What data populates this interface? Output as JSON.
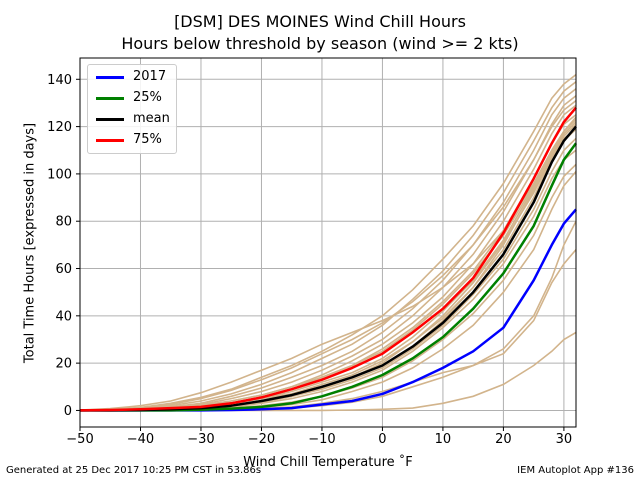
{
  "title": "[DSM] DES MOINES Wind Chill Hours",
  "subtitle": "Hours below threshold by season (wind >= 2 kts)",
  "footer_left": "Generated at 25 Dec 2017 10:25 PM CST in 53.86s",
  "footer_right": "IEM Autoplot App #136",
  "chart_data": {
    "type": "line",
    "xlabel": "Wind Chill Temperature ˚F",
    "ylabel": "Total Time Hours [expressed in days]",
    "xlim": [
      -50,
      32
    ],
    "ylim": [
      -7,
      149
    ],
    "xticks": [
      -50,
      -40,
      -30,
      -20,
      -10,
      0,
      10,
      20,
      30
    ],
    "yticks": [
      0,
      20,
      40,
      60,
      80,
      100,
      120,
      140
    ],
    "grid": true,
    "legend_position": "top-left",
    "background_color": "#d2b48c",
    "x": [
      -50,
      -45,
      -40,
      -35,
      -30,
      -25,
      -20,
      -15,
      -10,
      -5,
      0,
      5,
      10,
      15,
      20,
      25,
      28,
      30,
      32
    ],
    "series": [
      {
        "name": "2017",
        "color": "#0000ff",
        "values": [
          0,
          0,
          0,
          0,
          0,
          0.2,
          0.5,
          1,
          2.5,
          4,
          7,
          12,
          18,
          25,
          35,
          55,
          70,
          79,
          85
        ]
      },
      {
        "name": "25%",
        "color": "#008000",
        "values": [
          0,
          0,
          0,
          0,
          0.3,
          0.8,
          1.5,
          3,
          6,
          10,
          15,
          22,
          31,
          43,
          58,
          78,
          95,
          106,
          113
        ]
      },
      {
        "name": "mean",
        "color": "#000000",
        "values": [
          0,
          0,
          0.2,
          0.5,
          1,
          2,
          4,
          6.5,
          10,
          14,
          19,
          27,
          37,
          50,
          66,
          88,
          105,
          114,
          120
        ]
      },
      {
        "name": "75%",
        "color": "#ff0000",
        "values": [
          0,
          0.2,
          0.5,
          1,
          1.5,
          3,
          5.5,
          9,
          13,
          18,
          24,
          33,
          43,
          56,
          75,
          98,
          113,
          122,
          128
        ]
      }
    ],
    "seasons": [
      [
        0,
        0,
        0,
        0,
        0,
        0,
        0,
        0,
        0,
        0.2,
        0.5,
        1,
        3,
        6,
        11,
        19,
        25,
        30,
        33
      ],
      [
        0,
        0,
        0,
        0,
        0.1,
        0.3,
        0.8,
        1.5,
        3,
        5,
        8,
        12,
        16,
        19,
        24,
        38,
        54,
        62,
        68
      ],
      [
        0,
        0,
        0,
        0,
        0.1,
        0.3,
        0.5,
        1,
        2,
        3.5,
        6,
        10,
        14,
        19,
        26,
        40,
        56,
        70,
        80
      ],
      [
        0,
        0,
        0,
        0.1,
        0.3,
        0.6,
        1.2,
        2.5,
        4.5,
        8,
        12,
        18,
        26,
        36,
        50,
        68,
        85,
        95,
        101
      ],
      [
        0,
        0,
        0,
        0.2,
        0.5,
        1,
        2,
        3.5,
        6,
        9.5,
        14,
        21,
        30,
        41,
        55,
        74,
        90,
        99,
        104
      ],
      [
        0,
        0,
        0.1,
        0.3,
        0.8,
        1.5,
        3,
        5,
        8,
        12,
        17,
        25,
        35,
        47,
        62,
        82,
        98,
        106,
        110
      ],
      [
        0,
        0,
        0.2,
        0.5,
        1,
        2,
        3.5,
        6,
        9,
        13,
        18,
        26,
        36,
        49,
        64,
        85,
        101,
        110,
        115
      ],
      [
        0,
        0.1,
        0.3,
        0.6,
        1.2,
        2.3,
        4,
        7,
        11,
        15,
        21,
        29,
        39,
        52,
        68,
        90,
        106,
        114,
        119
      ],
      [
        0,
        0.1,
        0.3,
        0.7,
        1.5,
        2.8,
        5,
        8,
        12,
        16,
        22,
        31,
        42,
        55,
        72,
        94,
        109,
        117,
        122
      ],
      [
        0,
        0.1,
        0.4,
        0.9,
        1.8,
        3.2,
        5.5,
        9,
        14,
        19,
        26,
        35,
        46,
        59,
        76,
        98,
        113,
        121,
        125
      ],
      [
        0,
        0.2,
        0.5,
        1,
        2,
        4,
        6.5,
        10,
        15,
        21,
        28,
        37,
        48,
        62,
        80,
        102,
        117,
        125,
        129
      ],
      [
        0,
        0.2,
        0.6,
        1.2,
        2.5,
        5,
        8,
        12,
        17,
        23,
        30,
        40,
        52,
        66,
        84,
        106,
        121,
        129,
        133
      ],
      [
        0,
        0.3,
        0.8,
        1.5,
        3,
        6,
        9.5,
        14,
        19,
        25,
        33,
        43,
        55,
        70,
        88,
        110,
        125,
        132,
        136
      ],
      [
        0,
        0.4,
        1,
        2,
        4,
        7,
        11,
        16,
        22,
        28,
        36,
        47,
        59,
        74,
        92,
        114,
        128,
        135,
        139
      ],
      [
        0.1,
        0.5,
        1.3,
        3,
        5.5,
        9,
        14,
        19,
        25,
        32,
        40,
        51,
        64,
        78,
        96,
        118,
        132,
        138,
        142
      ],
      [
        0.2,
        0.8,
        2,
        4,
        7.5,
        12,
        17,
        22,
        28,
        33,
        38,
        44,
        52,
        62,
        76,
        96,
        110,
        118,
        124
      ],
      [
        0,
        0.3,
        1,
        2.5,
        5,
        8.5,
        13,
        18,
        24,
        30,
        37,
        46,
        57,
        70,
        86,
        106,
        120,
        127,
        131
      ],
      [
        0,
        0.2,
        0.5,
        1,
        2,
        3,
        5,
        7,
        10,
        14,
        19,
        27,
        38,
        52,
        70,
        93,
        108,
        116,
        121
      ],
      [
        0,
        0.1,
        0.4,
        1,
        2.2,
        4,
        6.5,
        10,
        14,
        19,
        25,
        34,
        45,
        58,
        74,
        95,
        110,
        118,
        123
      ],
      [
        0,
        0,
        0.2,
        0.5,
        1,
        2,
        3.5,
        6,
        9.5,
        14,
        20,
        29,
        40,
        54,
        71,
        92,
        107,
        115,
        119
      ]
    ]
  }
}
